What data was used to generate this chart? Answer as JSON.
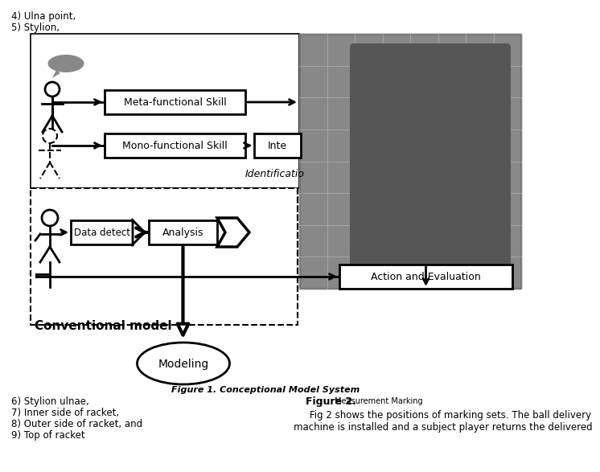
{
  "title_top_left": "4) Ulna point,",
  "title_top_left2": "5) Stylion,",
  "figure_caption": "Figure 1. Conceptional Model System",
  "figure2_label": "Figure 2.",
  "figure2_sublabel": "Measurement Marking",
  "bottom_items": [
    "6) Stylion ulnae,",
    "7) Inner side of racket,",
    "8) Outer side of racket, and",
    "9) Top of racket"
  ],
  "fig2_text_line1": "Fig 2 shows the positions of marking sets. The ball delivery",
  "fig2_text_line2": "machine is installed and a subject player returns the delivered",
  "bg_color": "#ffffff"
}
